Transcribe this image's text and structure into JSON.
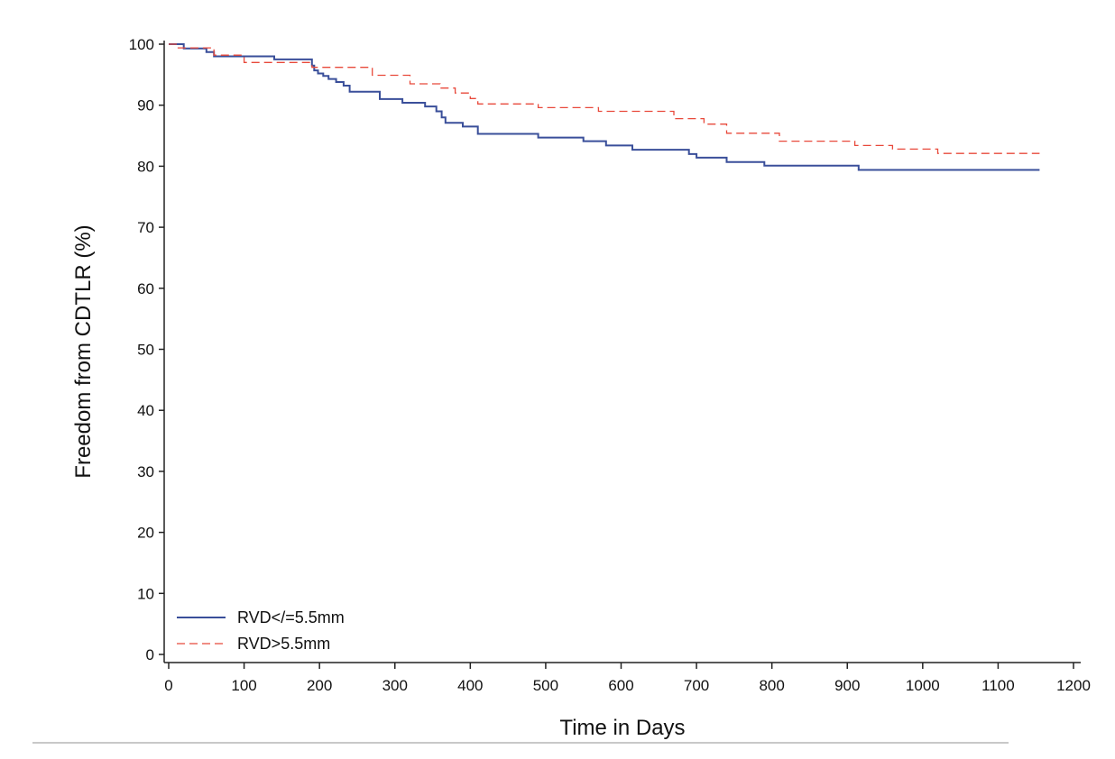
{
  "chart_data": {
    "type": "line",
    "title": "",
    "xlabel": "Time in Days",
    "ylabel": "Freedom from CDTLR (%)",
    "xlim": [
      0,
      1200
    ],
    "ylim": [
      0,
      100
    ],
    "xticks": [
      0,
      100,
      200,
      300,
      400,
      500,
      600,
      700,
      800,
      900,
      1000,
      1100,
      1200
    ],
    "yticks": [
      0,
      10,
      20,
      30,
      40,
      50,
      60,
      70,
      80,
      90,
      100
    ],
    "grid": false,
    "step": true,
    "legend_position": "bottom-left",
    "series": [
      {
        "name": "RVD</=5.5mm",
        "color": "#3a4f9a",
        "line_style": "solid",
        "x": [
          0,
          20,
          50,
          60,
          140,
          190,
          193,
          198,
          205,
          212,
          222,
          232,
          240,
          280,
          310,
          340,
          355,
          362,
          367,
          390,
          410,
          490,
          550,
          580,
          615,
          690,
          700,
          740,
          790,
          915,
          1155
        ],
        "y": [
          100,
          99.3,
          98.7,
          98.0,
          97.5,
          96.5,
          95.7,
          95.2,
          94.8,
          94.3,
          93.8,
          93.2,
          92.2,
          91.0,
          90.4,
          89.8,
          89.0,
          88.0,
          87.1,
          86.5,
          85.3,
          84.7,
          84.1,
          83.4,
          82.7,
          82.0,
          81.4,
          80.7,
          80.1,
          79.4,
          79.4
        ]
      },
      {
        "name": "RVD>5.5mm",
        "color": "#e8493b",
        "line_style": "dashed",
        "x": [
          0,
          10,
          60,
          100,
          190,
          270,
          320,
          360,
          380,
          400,
          410,
          490,
          570,
          670,
          710,
          740,
          810,
          910,
          960,
          1020,
          1155
        ],
        "y": [
          100,
          99.4,
          98.2,
          97.0,
          96.2,
          94.9,
          93.5,
          92.8,
          92.0,
          91.1,
          90.2,
          89.6,
          89.0,
          87.8,
          86.9,
          85.4,
          84.1,
          83.4,
          82.8,
          82.1,
          82.1
        ]
      }
    ]
  }
}
